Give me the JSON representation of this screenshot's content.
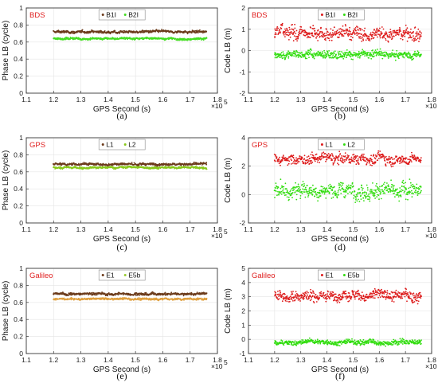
{
  "chart_data": [
    {
      "id": "a",
      "caption": "(a)",
      "type": "scatter",
      "system": "BDS",
      "legend": [
        "B1I",
        "B2I"
      ],
      "series_names": [
        "B1I",
        "B2I"
      ],
      "colors": [
        "#6b3a1a",
        "#44dd22"
      ],
      "xlabel": "GPS Second (s)",
      "ylabel": "Phase LB (cycle)",
      "x_exponent": "5",
      "xlim": [
        1.1,
        1.8
      ],
      "ylim": [
        0,
        1
      ],
      "xticks": [
        1.1,
        1.2,
        1.3,
        1.4,
        1.5,
        1.6,
        1.7,
        1.8
      ],
      "yticks": [
        0,
        0.2,
        0.4,
        0.6,
        0.8,
        1
      ],
      "x_range": [
        1.2,
        1.76
      ],
      "series": [
        {
          "name": "upper",
          "mean": 0.72,
          "noise": 0.012,
          "color": "#6b3a1a"
        },
        {
          "name": "lower",
          "mean": 0.64,
          "noise": 0.01,
          "color": "#44dd22"
        }
      ]
    },
    {
      "id": "b",
      "caption": "(b)",
      "type": "scatter",
      "system": "BDS",
      "legend": [
        "B1I",
        "B2I"
      ],
      "series_names": [
        "B1I",
        "B2I"
      ],
      "colors": [
        "#dd1a1a",
        "#33dd11"
      ],
      "xlabel": "GPS Second (s)",
      "ylabel": "Code LB (m)",
      "x_exponent": "5",
      "xlim": [
        1.1,
        1.8
      ],
      "ylim": [
        -2,
        2
      ],
      "xticks": [
        1.1,
        1.2,
        1.3,
        1.4,
        1.5,
        1.6,
        1.7,
        1.8
      ],
      "yticks": [
        -2,
        -1,
        0,
        1,
        2
      ],
      "x_range": [
        1.2,
        1.76
      ],
      "series": [
        {
          "name": "upper",
          "mean": 0.8,
          "noise": 0.25,
          "color": "#dd1a1a"
        },
        {
          "name": "lower",
          "mean": -0.2,
          "noise": 0.15,
          "color": "#33dd11"
        }
      ]
    },
    {
      "id": "c",
      "caption": "(c)",
      "type": "scatter",
      "system": "GPS",
      "legend": [
        "L1",
        "L2"
      ],
      "series_names": [
        "L1",
        "L2"
      ],
      "colors": [
        "#6b3a1a",
        "#88c81a"
      ],
      "xlabel": "GPS Second (s)",
      "ylabel": "Phase LB (cycle)",
      "x_exponent": "5",
      "xlim": [
        1.1,
        1.8
      ],
      "ylim": [
        0,
        1
      ],
      "xticks": [
        1.1,
        1.2,
        1.3,
        1.4,
        1.5,
        1.6,
        1.7,
        1.8
      ],
      "yticks": [
        0,
        0.2,
        0.4,
        0.6,
        0.8,
        1
      ],
      "x_range": [
        1.2,
        1.76
      ],
      "series": [
        {
          "name": "upper",
          "mean": 0.69,
          "noise": 0.012,
          "color": "#6b3a1a"
        },
        {
          "name": "lower",
          "mean": 0.65,
          "noise": 0.01,
          "color": "#88c81a"
        }
      ]
    },
    {
      "id": "d",
      "caption": "(d)",
      "type": "scatter",
      "system": "GPS",
      "legend": [
        "L1",
        "L2"
      ],
      "series_names": [
        "L1",
        "L2"
      ],
      "colors": [
        "#dd1a1a",
        "#33dd11"
      ],
      "xlabel": "GPS Second (s)",
      "ylabel": "Code LB (m)",
      "x_exponent": "5",
      "xlim": [
        1.1,
        1.8
      ],
      "ylim": [
        -2,
        4
      ],
      "xticks": [
        1.1,
        1.2,
        1.3,
        1.4,
        1.5,
        1.6,
        1.7,
        1.8
      ],
      "yticks": [
        -2,
        0,
        2,
        4
      ],
      "x_range": [
        1.2,
        1.76
      ],
      "series": [
        {
          "name": "upper",
          "mean": 2.5,
          "noise": 0.3,
          "color": "#dd1a1a"
        },
        {
          "name": "lower",
          "mean": 0.3,
          "noise": 0.45,
          "color": "#33dd11"
        }
      ]
    },
    {
      "id": "e",
      "caption": "(e)",
      "type": "scatter",
      "system": "Galileo",
      "legend": [
        "E1",
        "E5b"
      ],
      "series_names": [
        "E1",
        "E5b"
      ],
      "colors": [
        "#6b3a1a",
        "#9acd32"
      ],
      "xlabel": "GPS Second (s)",
      "ylabel": "Phase LB (cycle)",
      "x_exponent": "5",
      "xlim": [
        1.1,
        1.8
      ],
      "ylim": [
        0,
        1
      ],
      "xticks": [
        1.1,
        1.2,
        1.3,
        1.4,
        1.5,
        1.6,
        1.7,
        1.8
      ],
      "yticks": [
        0,
        0.2,
        0.4,
        0.6,
        0.8,
        1
      ],
      "x_range": [
        1.2,
        1.76
      ],
      "series": [
        {
          "name": "upper",
          "mean": 0.7,
          "noise": 0.012,
          "color": "#6b3a1a"
        },
        {
          "name": "lower",
          "mean": 0.64,
          "noise": 0.01,
          "color": "#e0a040"
        }
      ]
    },
    {
      "id": "f",
      "caption": "(f)",
      "type": "scatter",
      "system": "Galileo",
      "legend": [
        "E1",
        "E5b"
      ],
      "series_names": [
        "E1",
        "E5b"
      ],
      "colors": [
        "#dd1a1a",
        "#33dd11"
      ],
      "xlabel": "GPS Second (s)",
      "ylabel": "Code LB (m)",
      "x_exponent": "5",
      "xlim": [
        1.1,
        1.8
      ],
      "ylim": [
        -1,
        5
      ],
      "xticks": [
        1.1,
        1.2,
        1.3,
        1.4,
        1.5,
        1.6,
        1.7,
        1.8
      ],
      "yticks": [
        -1,
        0,
        1,
        2,
        3,
        4,
        5
      ],
      "x_range": [
        1.2,
        1.76
      ],
      "series": [
        {
          "name": "upper",
          "mean": 3.1,
          "noise": 0.3,
          "color": "#dd1a1a"
        },
        {
          "name": "lower",
          "mean": -0.2,
          "noise": 0.15,
          "color": "#33dd11"
        }
      ]
    }
  ]
}
